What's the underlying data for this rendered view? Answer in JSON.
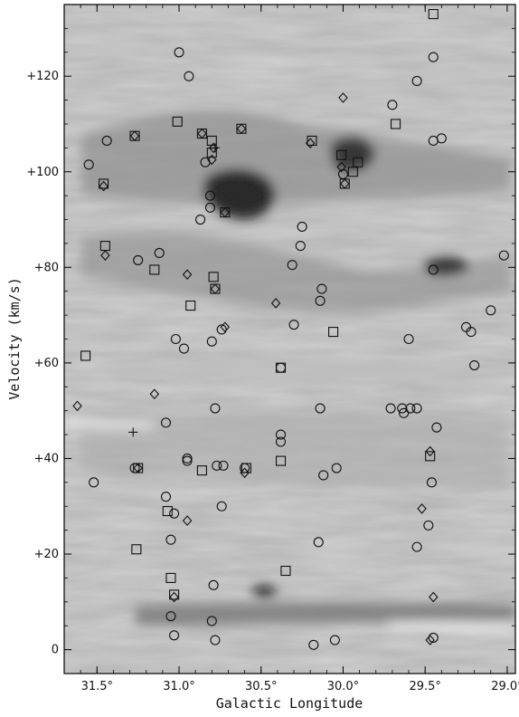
{
  "chart_data": {
    "type": "scatter",
    "title": "",
    "xlabel": "Galactic Longitude",
    "ylabel": "Velocity (km/s)",
    "xlim": [
      31.7,
      28.95
    ],
    "ylim": [
      -5,
      135
    ],
    "x_reversed": true,
    "x_ticks": [
      31.5,
      31.0,
      30.5,
      30.0,
      29.5,
      29.0
    ],
    "x_tick_labels": [
      "31.5°",
      "31.0°",
      "30.5°",
      "30.0°",
      "29.5°",
      "29.0°"
    ],
    "y_ticks": [
      0,
      20,
      40,
      60,
      80,
      100,
      120
    ],
    "y_tick_labels": [
      "0",
      "+20",
      "+40",
      "+60",
      "+80",
      "+100",
      "+120"
    ],
    "background": "grayscale longitude-velocity emission map",
    "series": [
      {
        "marker": "circle",
        "points": [
          [
            31.0,
            125
          ],
          [
            30.94,
            120
          ],
          [
            29.45,
            124
          ],
          [
            29.55,
            119
          ],
          [
            29.7,
            114
          ],
          [
            29.4,
            107
          ],
          [
            29.45,
            106.5
          ],
          [
            31.44,
            106.5
          ],
          [
            31.55,
            101.5
          ],
          [
            30.84,
            102
          ],
          [
            30.0,
            99.5
          ],
          [
            30.81,
            95
          ],
          [
            30.81,
            92.5
          ],
          [
            30.87,
            90
          ],
          [
            30.25,
            88.5
          ],
          [
            30.26,
            84.5
          ],
          [
            31.12,
            83
          ],
          [
            31.25,
            81.5
          ],
          [
            30.31,
            80.5
          ],
          [
            30.13,
            75.5
          ],
          [
            30.14,
            73
          ],
          [
            29.45,
            79.5
          ],
          [
            29.02,
            82.5
          ],
          [
            29.1,
            71
          ],
          [
            29.25,
            67.5
          ],
          [
            29.22,
            66.5
          ],
          [
            30.3,
            68
          ],
          [
            30.74,
            67
          ],
          [
            31.02,
            65
          ],
          [
            30.97,
            63
          ],
          [
            30.8,
            64.5
          ],
          [
            29.6,
            65
          ],
          [
            29.2,
            59.5
          ],
          [
            30.38,
            59
          ],
          [
            29.71,
            50.5
          ],
          [
            29.64,
            50.5
          ],
          [
            29.63,
            49.5
          ],
          [
            29.59,
            50.5
          ],
          [
            29.55,
            50.5
          ],
          [
            30.78,
            50.5
          ],
          [
            30.14,
            50.5
          ],
          [
            31.08,
            47.5
          ],
          [
            29.43,
            46.5
          ],
          [
            30.38,
            45
          ],
          [
            30.38,
            43.5
          ],
          [
            30.95,
            40
          ],
          [
            30.95,
            39.5
          ],
          [
            30.73,
            38.5
          ],
          [
            30.77,
            38.5
          ],
          [
            30.6,
            38
          ],
          [
            31.27,
            38
          ],
          [
            30.12,
            36.5
          ],
          [
            30.04,
            38
          ],
          [
            29.46,
            35
          ],
          [
            31.52,
            35
          ],
          [
            31.08,
            32
          ],
          [
            30.74,
            30
          ],
          [
            29.48,
            26
          ],
          [
            31.03,
            28.5
          ],
          [
            31.05,
            23
          ],
          [
            30.15,
            22.5
          ],
          [
            29.55,
            21.5
          ],
          [
            30.79,
            13.5
          ],
          [
            31.05,
            7
          ],
          [
            31.03,
            3
          ],
          [
            30.8,
            6
          ],
          [
            30.78,
            2
          ],
          [
            30.18,
            1
          ],
          [
            30.05,
            2
          ],
          [
            29.45,
            2.5
          ]
        ]
      },
      {
        "marker": "square",
        "points": [
          [
            29.45,
            133
          ],
          [
            31.01,
            110.5
          ],
          [
            29.68,
            110
          ],
          [
            31.27,
            107.5
          ],
          [
            30.86,
            108
          ],
          [
            30.8,
            106.5
          ],
          [
            30.62,
            109
          ],
          [
            30.19,
            106.5
          ],
          [
            30.01,
            103.5
          ],
          [
            29.94,
            100
          ],
          [
            29.91,
            102
          ],
          [
            29.99,
            97.5
          ],
          [
            31.46,
            97.5
          ],
          [
            30.8,
            104
          ],
          [
            30.72,
            91.5
          ],
          [
            31.45,
            84.5
          ],
          [
            31.15,
            79.5
          ],
          [
            30.79,
            78
          ],
          [
            30.93,
            72
          ],
          [
            30.78,
            75.5
          ],
          [
            30.06,
            66.5
          ],
          [
            31.57,
            61.5
          ],
          [
            30.38,
            59
          ],
          [
            30.38,
            39.5
          ],
          [
            31.25,
            38
          ],
          [
            30.86,
            37.5
          ],
          [
            30.59,
            38
          ],
          [
            29.47,
            40.5
          ],
          [
            31.07,
            29
          ],
          [
            31.26,
            21
          ],
          [
            31.05,
            15
          ],
          [
            30.35,
            16.5
          ],
          [
            31.03,
            11.5
          ]
        ]
      },
      {
        "marker": "diamond",
        "points": [
          [
            30.0,
            115.5
          ],
          [
            31.27,
            107.5
          ],
          [
            30.86,
            108
          ],
          [
            30.79,
            105
          ],
          [
            30.62,
            109
          ],
          [
            30.8,
            102.5
          ],
          [
            30.2,
            106
          ],
          [
            30.01,
            101
          ],
          [
            29.99,
            97.5
          ],
          [
            31.46,
            97
          ],
          [
            30.72,
            91.5
          ],
          [
            31.45,
            82.5
          ],
          [
            30.95,
            78.5
          ],
          [
            30.78,
            75.5
          ],
          [
            30.41,
            72.5
          ],
          [
            30.72,
            67.5
          ],
          [
            31.62,
            51
          ],
          [
            31.15,
            53.5
          ],
          [
            29.47,
            41.5
          ],
          [
            30.6,
            37
          ],
          [
            31.25,
            38
          ],
          [
            29.52,
            29.5
          ],
          [
            30.95,
            27
          ],
          [
            29.45,
            11
          ],
          [
            31.03,
            11
          ],
          [
            29.47,
            2
          ]
        ]
      },
      {
        "marker": "plus",
        "points": [
          [
            30.78,
            105
          ],
          [
            31.28,
            45.5
          ]
        ]
      }
    ]
  }
}
